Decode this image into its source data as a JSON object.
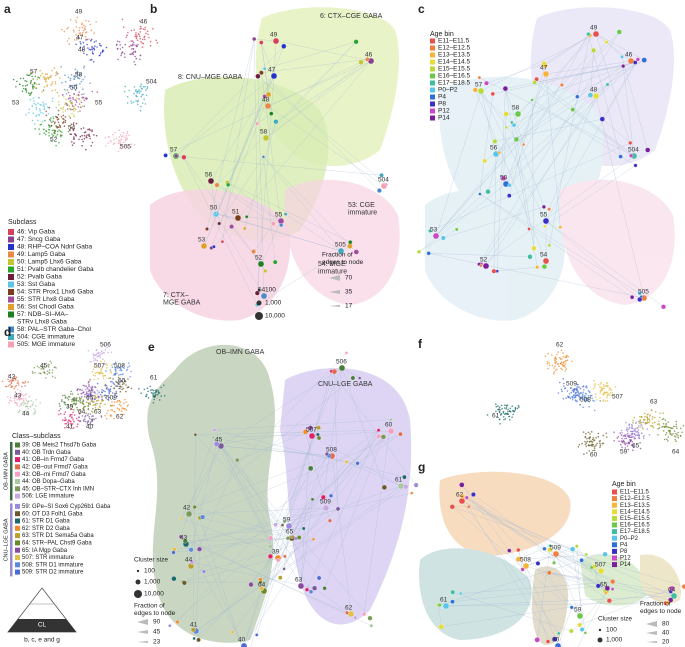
{
  "panel_letters": [
    "a",
    "b",
    "c",
    "d",
    "e",
    "f",
    "g"
  ],
  "panel_a": {
    "umap_labels": [
      "49",
      "46",
      "47",
      "48",
      "57",
      "58",
      "50",
      "504",
      "55",
      "53",
      "54",
      "52",
      "505"
    ],
    "legend_title": "Subclass",
    "legend": [
      {
        "label": "46: Vip Gaba",
        "color": "#d4415a"
      },
      {
        "label": "47: Sncg Gaba",
        "color": "#8a3f8f"
      },
      {
        "label": "48: RHP–COA Ndnf Gaba",
        "color": "#2432c8"
      },
      {
        "label": "49: Lamp5 Gaba",
        "color": "#e8894a"
      },
      {
        "label": "50: Lamp5 Lhx6 Gaba",
        "color": "#c3c431"
      },
      {
        "label": "51: Pvalb chandelier Gaba",
        "color": "#2aa42a"
      },
      {
        "label": "52: Pvalb Gaba",
        "color": "#6b1e3a"
      },
      {
        "label": "53: Sst Gaba",
        "color": "#5fc3e4"
      },
      {
        "label": "54: STR Prox1 Lhx6 Gaba",
        "color": "#7a3d1c"
      },
      {
        "label": "55: STR Lhx8 Gaba",
        "color": "#a04da0"
      },
      {
        "label": "56: Sst Chodl Gaba",
        "color": "#e0a02c"
      },
      {
        "label": [
          "57: NDB–SI–MA–",
          "STRv Lhx8 Gaba"
        ],
        "color": "#1e7f1e"
      },
      {
        "label": "58: PAL–STR Gaba–Chol",
        "color": "#4a8ac8"
      },
      {
        "label": "504: CGE immature",
        "color": "#3fa9bf"
      },
      {
        "label": "505: MGE immature",
        "color": "#f4a0b5"
      }
    ]
  },
  "panel_b": {
    "regions": [
      "6: CTX–CGE GABA",
      "8: CNU–MGE GABA",
      [
        "53: CGE",
        "immature"
      ],
      [
        "54: MGE",
        "immature"
      ],
      [
        "7: CTX–",
        "MGE GABA"
      ]
    ],
    "node_labels": [
      "49",
      "46",
      "47",
      "48",
      "58",
      "57",
      "56",
      "50",
      "51",
      "55",
      "53",
      "52",
      "54",
      "505",
      "504"
    ],
    "cluster_size_values": [
      "100",
      "1,000",
      "10,000"
    ],
    "fraction_title": [
      "Fraction of",
      "edges to node"
    ],
    "fraction_values": [
      "70",
      "35",
      "17"
    ]
  },
  "panel_c": {
    "legend_title": "Age bin",
    "legend": [
      {
        "label": "E11–E11.5",
        "color": "#e8504a"
      },
      {
        "label": "E12–E12.5",
        "color": "#f07e3e"
      },
      {
        "label": "E13–E13.5",
        "color": "#f6b43c"
      },
      {
        "label": "E14–E14.5",
        "color": "#e6dc3a"
      },
      {
        "label": "E15–E15.5",
        "color": "#b6d93c"
      },
      {
        "label": "E16–E16.5",
        "color": "#6cc84a"
      },
      {
        "label": "E17–E18.5",
        "color": "#3fbfa0"
      },
      {
        "label": "P0–P2",
        "color": "#58c6e8"
      },
      {
        "label": "P4",
        "color": "#2f6fd8"
      },
      {
        "label": "P8",
        "color": "#3a2fc8"
      },
      {
        "label": "P12",
        "color": "#c848c8"
      },
      {
        "label": "P14",
        "color": "#7a1f9a"
      }
    ],
    "node_labels": [
      "49",
      "46",
      "47",
      "48",
      "57",
      "58",
      "504",
      "56",
      "50",
      "55",
      "53",
      "52",
      "54",
      "505"
    ]
  },
  "panel_d": {
    "umap_labels": [
      "506",
      "45",
      "42",
      "507",
      "508",
      "60",
      "61",
      "509",
      "65",
      "43",
      "44",
      "39",
      "64",
      "63",
      "62",
      "41",
      "40"
    ],
    "legend_title": "Class–subclass",
    "groups": [
      {
        "name": "OB–IMN GABA",
        "color": "#3d6b48",
        "items": [
          {
            "label": "39: OB Meis2 Thsd7b Gaba",
            "color": "#4a7d3a"
          },
          {
            "label": "40: OB Trdn Gaba",
            "color": "#7a5b9a"
          },
          {
            "label": "41: OB–in Frmd7 Gaba",
            "color": "#e0206a"
          },
          {
            "label": "42: OB–out Frmd7 Gaba",
            "color": "#e06a4a"
          },
          {
            "label": "43: OB–mi Frmd7 Gaba",
            "color": "#f4a0c0"
          },
          {
            "label": "44: OB Dopa–Gaba",
            "color": "#a8c8a0"
          },
          {
            "label": "45: OB–STR–CTX Inh IMN",
            "color": "#7a9a5a"
          },
          {
            "label": "506: LGE immature",
            "color": "#c8a8e0"
          }
        ]
      },
      {
        "name": "CNU–LGE GABA",
        "color": "#9a8ad0",
        "items": [
          {
            "label": "59: GPe–SI Sox6 Cyp26b1 Gaba",
            "color": "#9a8ae0"
          },
          {
            "label": "60: OT D3 Folh1 Gaba",
            "color": "#6a5a2a"
          },
          {
            "label": "61: STR D1 Gaba",
            "color": "#1a6a6a"
          },
          {
            "label": "62: STR D2 Gaba",
            "color": "#f08a2a"
          },
          {
            "label": "63: STR D1 Sema5a Gaba",
            "color": "#b8a02a"
          },
          {
            "label": "64: STR–PAL Chst9 Gaba",
            "color": "#6a8a2a"
          },
          {
            "label": "65: IA Mgp Gaba",
            "color": "#8a4aa0"
          },
          {
            "label": "507: STR immature",
            "color": "#e0c04a"
          },
          {
            "label": "508: STR D1 immature",
            "color": "#5a8ae0"
          },
          {
            "label": "509: STR D2 immature",
            "color": "#4a6ad8"
          }
        ]
      }
    ]
  },
  "panel_e": {
    "regions": [
      "OB–IMN GABA",
      "CNU–LGE GABA"
    ],
    "node_labels": [
      "506",
      "45",
      "507",
      "508",
      "60",
      "61",
      "42",
      "509",
      "59",
      "65",
      "43",
      "39",
      "44",
      "64",
      "63",
      "62",
      "41",
      "40"
    ],
    "cluster_size_title": "Cluster size",
    "cluster_size_values": [
      "100",
      "1,000",
      "10,000"
    ],
    "fraction_title": [
      "Fraction of",
      "edges to node"
    ],
    "fraction_values": [
      "90",
      "45",
      "23"
    ]
  },
  "panel_f": {
    "umap_labels": [
      "62",
      "509",
      "507",
      "508",
      "63",
      "61",
      "59",
      "65",
      "64",
      "60"
    ]
  },
  "panel_g": {
    "legend_title": "Age bin",
    "legend": [
      {
        "label": "E11–E11.5",
        "color": "#e8504a"
      },
      {
        "label": "E12–E12.5",
        "color": "#f07e3e"
      },
      {
        "label": "E13–E13.5",
        "color": "#f6b43c"
      },
      {
        "label": "E14–E14.5",
        "color": "#e6dc3a"
      },
      {
        "label": "E15–E15.5",
        "color": "#b6d93c"
      },
      {
        "label": "E16–E16.5",
        "color": "#6cc84a"
      },
      {
        "label": "E17–E18.5",
        "color": "#3fbfa0"
      },
      {
        "label": "P0–P2",
        "color": "#58c6e8"
      },
      {
        "label": "P4",
        "color": "#2f6fd8"
      },
      {
        "label": "P8",
        "color": "#3a2fc8"
      },
      {
        "label": "P12",
        "color": "#c848c8"
      },
      {
        "label": "P14",
        "color": "#7a1f9a"
      }
    ],
    "node_labels": [
      "62",
      "509",
      "508",
      "507",
      "65",
      "59",
      "64",
      "61",
      "60"
    ],
    "cluster_size_title": "Cluster size",
    "cluster_size_values": [
      "100",
      "1,000"
    ],
    "fraction_title": [
      "Fraction of",
      "edges to node"
    ],
    "fraction_values": [
      "80",
      "40",
      "20"
    ]
  },
  "footer": {
    "triangle_label": "CL",
    "caption": "b, c, e and g"
  }
}
